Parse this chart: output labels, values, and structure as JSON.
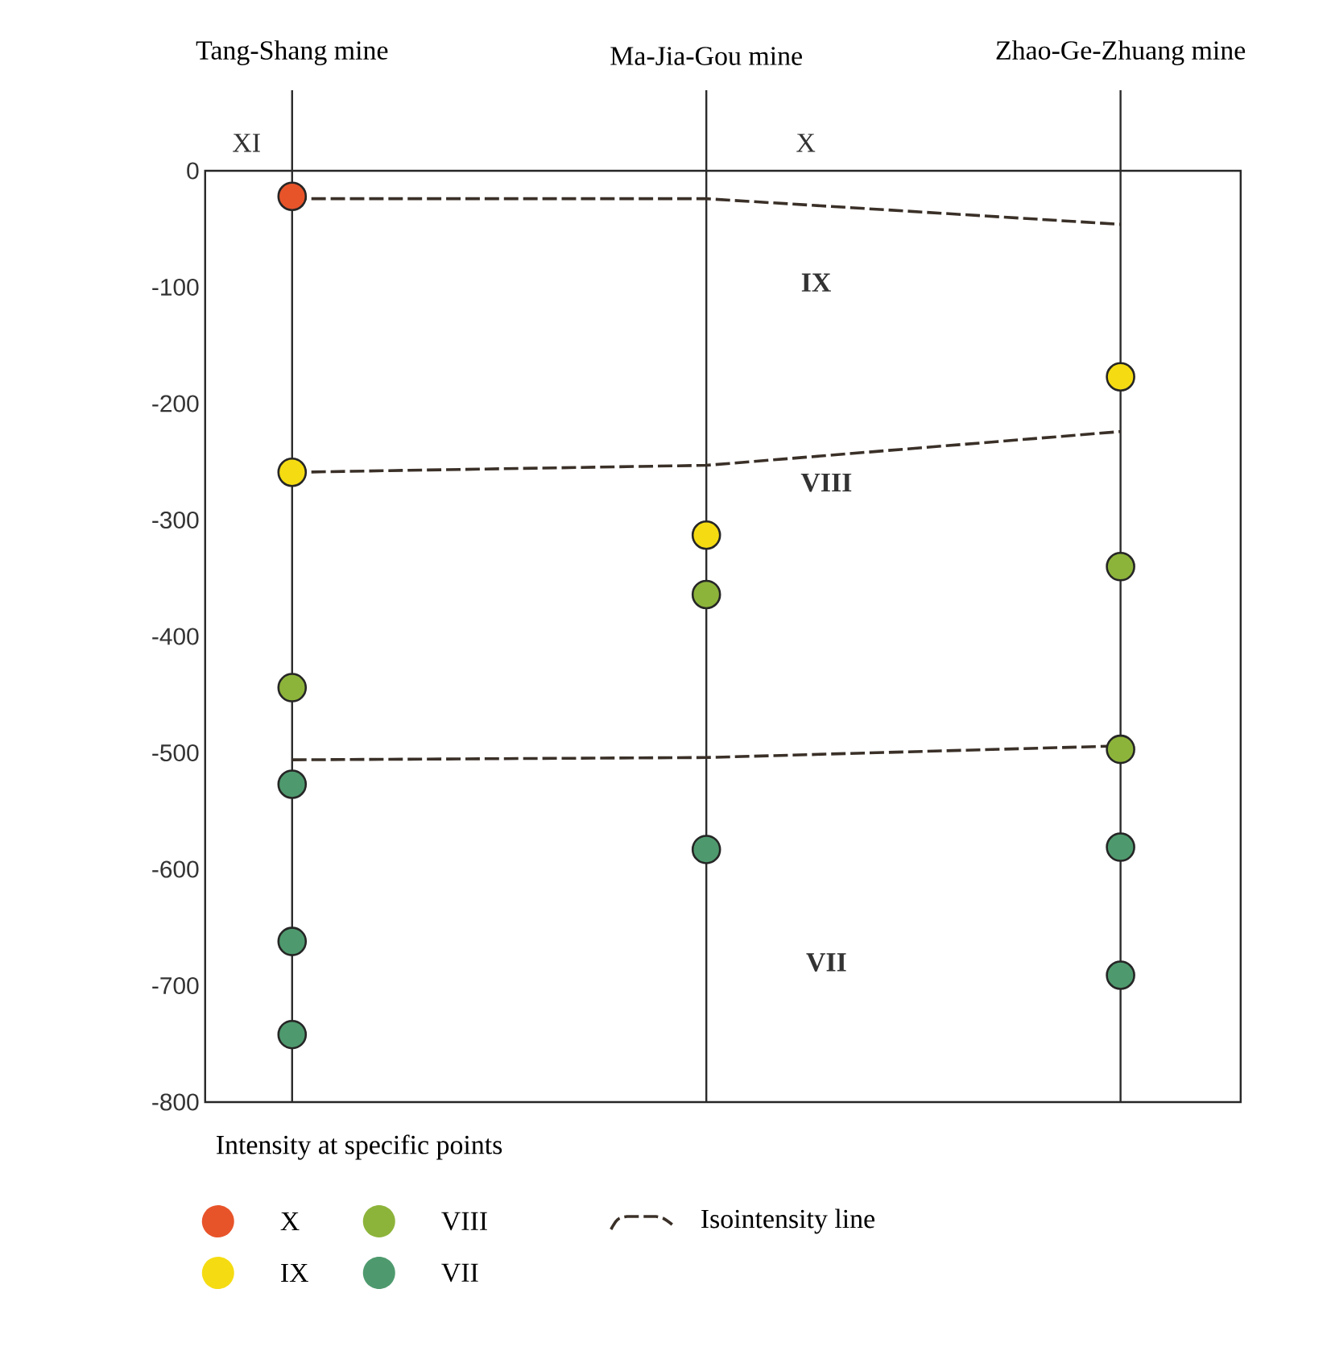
{
  "chart_data": {
    "type": "scatter",
    "legend_title": "Intensity at specific points",
    "legend": "bottom",
    "marker": "circle",
    "grid": "x",
    "categories": [
      "Tang-Shang mine",
      "Ma-Jia-Gou mine",
      "Zhao-Ge-Zhuang mine"
    ],
    "ylim": [
      -800,
      0
    ],
    "yticks": [
      0,
      -100,
      -200,
      -300,
      -400,
      -500,
      -600,
      -700,
      -800
    ],
    "series": [
      {
        "name": "X",
        "color": "#e8542a",
        "x": [
          "Tang-Shang mine"
        ],
        "values": [
          -22
        ]
      },
      {
        "name": "IX",
        "color": "#f5dc12",
        "x": [
          "Tang-Shang mine",
          "Ma-Jia-Gou mine",
          "Zhao-Ge-Zhuang mine"
        ],
        "values": [
          -259,
          -313,
          -177
        ]
      },
      {
        "name": "VIII",
        "color": "#8db43a",
        "x": [
          "Tang-Shang mine",
          "Ma-Jia-Gou mine",
          "Zhao-Ge-Zhuang mine",
          "Zhao-Ge-Zhuang mine"
        ],
        "values": [
          -444,
          -364,
          -340,
          -497
        ]
      },
      {
        "name": "VII",
        "color": "#4e9a6e",
        "x": [
          "Tang-Shang mine",
          "Tang-Shang mine",
          "Tang-Shang mine",
          "Ma-Jia-Gou mine",
          "Zhao-Ge-Zhuang mine",
          "Zhao-Ge-Zhuang mine"
        ],
        "values": [
          -527,
          -662,
          -742,
          -583,
          -581,
          -691
        ]
      },
      {
        "name": "Isointensity line",
        "type": "line",
        "marker": "none",
        "line_style": "dashed",
        "color": "#3a3028",
        "values": [
          -24,
          -24,
          -46
        ]
      },
      {
        "type": "line",
        "marker": "none",
        "line_style": "dashed",
        "color": "#3a3028",
        "values": [
          -259,
          -253,
          -224
        ]
      },
      {
        "type": "line",
        "marker": "none",
        "line_style": "dashed",
        "color": "#3a3028",
        "values": [
          -506,
          -504,
          -494
        ]
      }
    ],
    "annotations": [
      "XI",
      "X",
      "IX",
      "VIII",
      "VII"
    ]
  }
}
